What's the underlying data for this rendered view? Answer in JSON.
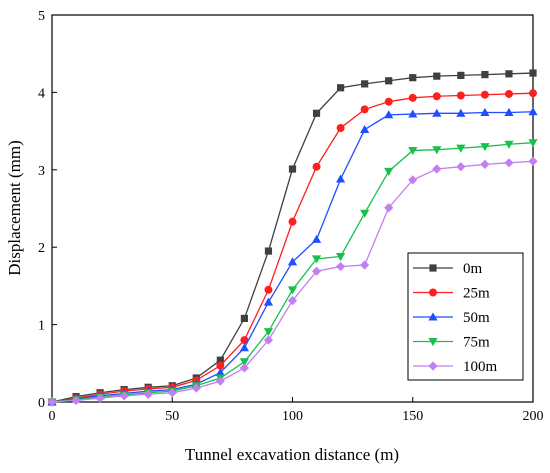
{
  "chart_data": {
    "type": "line",
    "xlabel": "Tunnel excavation distance (m)",
    "ylabel": "Displacement (mm)",
    "xlim": [
      0,
      200
    ],
    "ylim": [
      0,
      5
    ],
    "xticks": [
      0,
      50,
      100,
      150,
      200
    ],
    "yticks": [
      0,
      1,
      2,
      3,
      4,
      5
    ],
    "grid": false,
    "legend_position": "lower-right",
    "x": [
      0,
      10,
      20,
      30,
      40,
      50,
      60,
      70,
      80,
      90,
      100,
      110,
      120,
      130,
      140,
      150,
      160,
      170,
      180,
      190,
      200
    ],
    "series": [
      {
        "name": "0m",
        "color": "#404040",
        "marker": "square",
        "values": [
          0.0,
          0.07,
          0.12,
          0.16,
          0.19,
          0.21,
          0.31,
          0.54,
          1.08,
          1.95,
          3.01,
          3.73,
          4.06,
          4.11,
          4.15,
          4.19,
          4.21,
          4.22,
          4.23,
          4.24,
          4.25
        ]
      },
      {
        "name": "25m",
        "color": "#ff1f1f",
        "marker": "circle",
        "values": [
          0.0,
          0.05,
          0.1,
          0.14,
          0.17,
          0.19,
          0.28,
          0.47,
          0.8,
          1.45,
          2.33,
          3.04,
          3.54,
          3.78,
          3.88,
          3.93,
          3.95,
          3.96,
          3.97,
          3.98,
          3.99
        ]
      },
      {
        "name": "50m",
        "color": "#1f4fff",
        "marker": "triangle-up",
        "values": [
          0.0,
          0.04,
          0.08,
          0.11,
          0.14,
          0.16,
          0.23,
          0.38,
          0.7,
          1.29,
          1.81,
          2.1,
          2.88,
          3.52,
          3.71,
          3.72,
          3.73,
          3.73,
          3.74,
          3.74,
          3.75
        ]
      },
      {
        "name": "75m",
        "color": "#17c04a",
        "marker": "triangle-down",
        "values": [
          0.0,
          0.03,
          0.06,
          0.09,
          0.12,
          0.14,
          0.21,
          0.31,
          0.52,
          0.91,
          1.45,
          1.85,
          1.88,
          2.44,
          2.98,
          3.25,
          3.26,
          3.28,
          3.3,
          3.33,
          3.35
        ]
      },
      {
        "name": "100m",
        "color": "#c27ff0",
        "marker": "diamond",
        "values": [
          0.0,
          0.02,
          0.05,
          0.08,
          0.1,
          0.12,
          0.18,
          0.27,
          0.44,
          0.8,
          1.31,
          1.69,
          1.75,
          1.77,
          2.51,
          2.87,
          3.01,
          3.04,
          3.07,
          3.09,
          3.11
        ]
      }
    ]
  }
}
